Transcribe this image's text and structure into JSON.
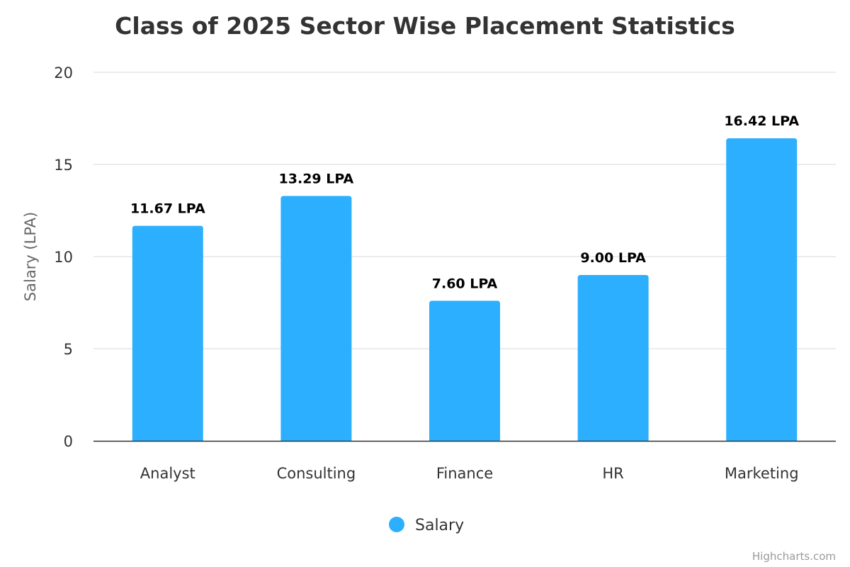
{
  "chart_data": {
    "type": "bar",
    "title": "Class of 2025 Sector Wise Placement Statistics",
    "xlabel": "",
    "ylabel": "Salary (LPA)",
    "categories": [
      "Analyst",
      "Consulting",
      "Finance",
      "HR",
      "Marketing"
    ],
    "series": [
      {
        "name": "Salary",
        "values": [
          11.67,
          13.29,
          7.6,
          9.0,
          16.42
        ],
        "color": "#2caffe"
      }
    ],
    "data_labels": [
      "11.67 LPA",
      "13.29 LPA",
      "7.60 LPA",
      "9.00 LPA",
      "16.42 LPA"
    ],
    "ylim": [
      0,
      20
    ],
    "yticks": [
      0,
      5,
      10,
      15,
      20
    ],
    "grid": true,
    "legend": "bottom-center"
  },
  "credits": "Highcharts.com"
}
